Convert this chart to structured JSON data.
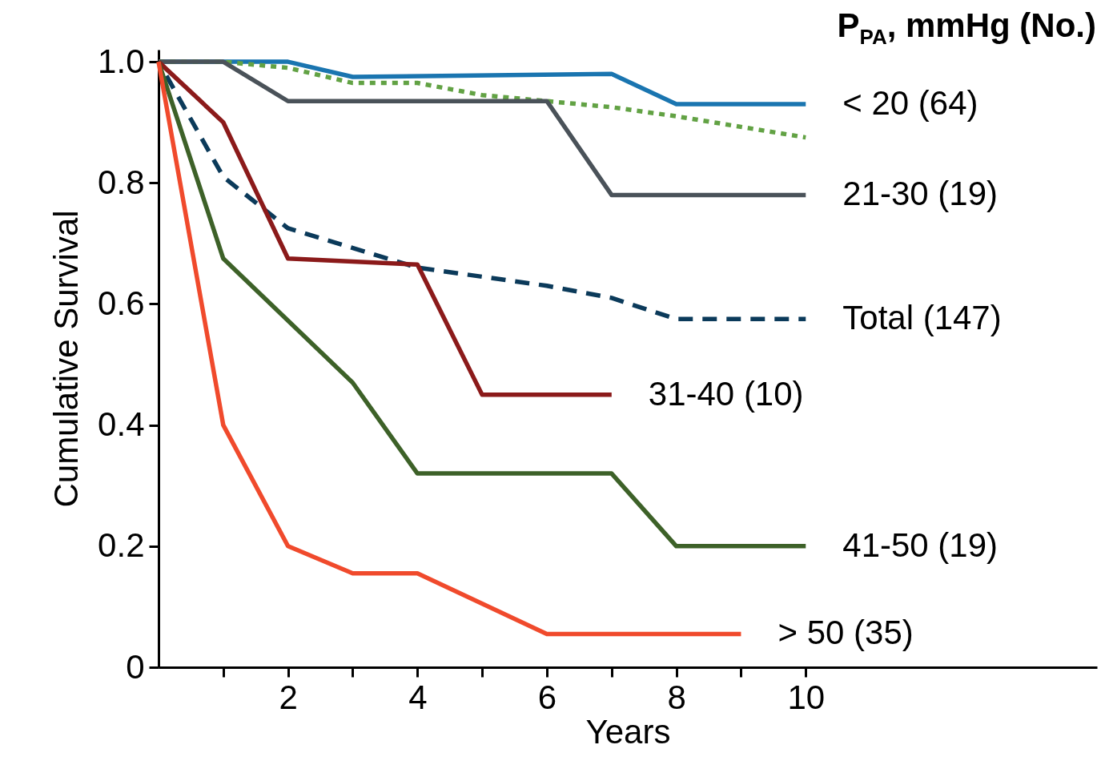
{
  "chart_data": {
    "type": "line",
    "xlabel": "Years",
    "ylabel": "Cumulative Survival",
    "legend_title": "P$_{PA}$, mmHg (No.)",
    "grid": false,
    "xlim": [
      0,
      14.5
    ],
    "xticks": [
      {
        "value": 1,
        "label": null
      },
      2,
      {
        "value": 3,
        "label": null
      },
      4,
      {
        "value": 5,
        "label": null
      },
      6,
      {
        "value": 7,
        "label": null
      },
      8,
      {
        "value": 9,
        "label": null
      },
      10
    ],
    "ylim": [
      0,
      1.02
    ],
    "yticks": [
      0,
      0.2,
      0.4,
      0.6,
      0.8,
      {
        "value": 1,
        "label": "1.0"
      }
    ],
    "series": [
      {
        "name": "< 20 (64)",
        "color": "#1a75b0",
        "line_style": "solid",
        "x": [
          0,
          2,
          3,
          7,
          8,
          10
        ],
        "values": [
          1,
          1,
          0.975,
          0.98,
          0.93,
          0.93
        ]
      },
      {
        "color": "#62a244",
        "line_style": "dotted",
        "x": [
          0,
          1,
          2,
          3,
          4,
          5,
          6,
          7,
          8,
          10
        ],
        "values": [
          1,
          1,
          0.99,
          0.965,
          0.965,
          0.945,
          0.935,
          0.925,
          0.91,
          0.875
        ]
      },
      {
        "name": "21-30 (19)",
        "color": "#4a5259",
        "line_style": "solid",
        "x": [
          0,
          1,
          2,
          6,
          7,
          10
        ],
        "values": [
          1,
          1,
          0.935,
          0.935,
          0.78,
          0.78
        ]
      },
      {
        "name": "Total (147)",
        "color": "#0b3a5a",
        "line_style": "dashed",
        "x": [
          0,
          1,
          2,
          4,
          6,
          7,
          8,
          10
        ],
        "values": [
          1,
          0.81,
          0.725,
          0.66,
          0.63,
          0.61,
          0.575,
          0.575
        ]
      },
      {
        "name": "31-40 (10)",
        "color": "#8b1a1a",
        "line_style": "solid",
        "x": [
          0,
          1,
          2,
          4,
          5,
          7
        ],
        "values": [
          1,
          0.9,
          0.675,
          0.665,
          0.45,
          0.45
        ]
      },
      {
        "name": "41-50 (19)",
        "color": "#3d6128",
        "line_style": "solid",
        "x": [
          0,
          1,
          3,
          4,
          7,
          8,
          10
        ],
        "values": [
          1,
          0.675,
          0.47,
          0.32,
          0.32,
          0.2,
          0.2
        ]
      },
      {
        "name": "> 50 (35)",
        "color": "#f04a2c",
        "line_style": "solid",
        "x": [
          0,
          1,
          2,
          3,
          4,
          6,
          9
        ],
        "values": [
          1,
          0.4,
          0.2,
          0.155,
          0.155,
          0.055,
          0.055
        ]
      }
    ]
  }
}
